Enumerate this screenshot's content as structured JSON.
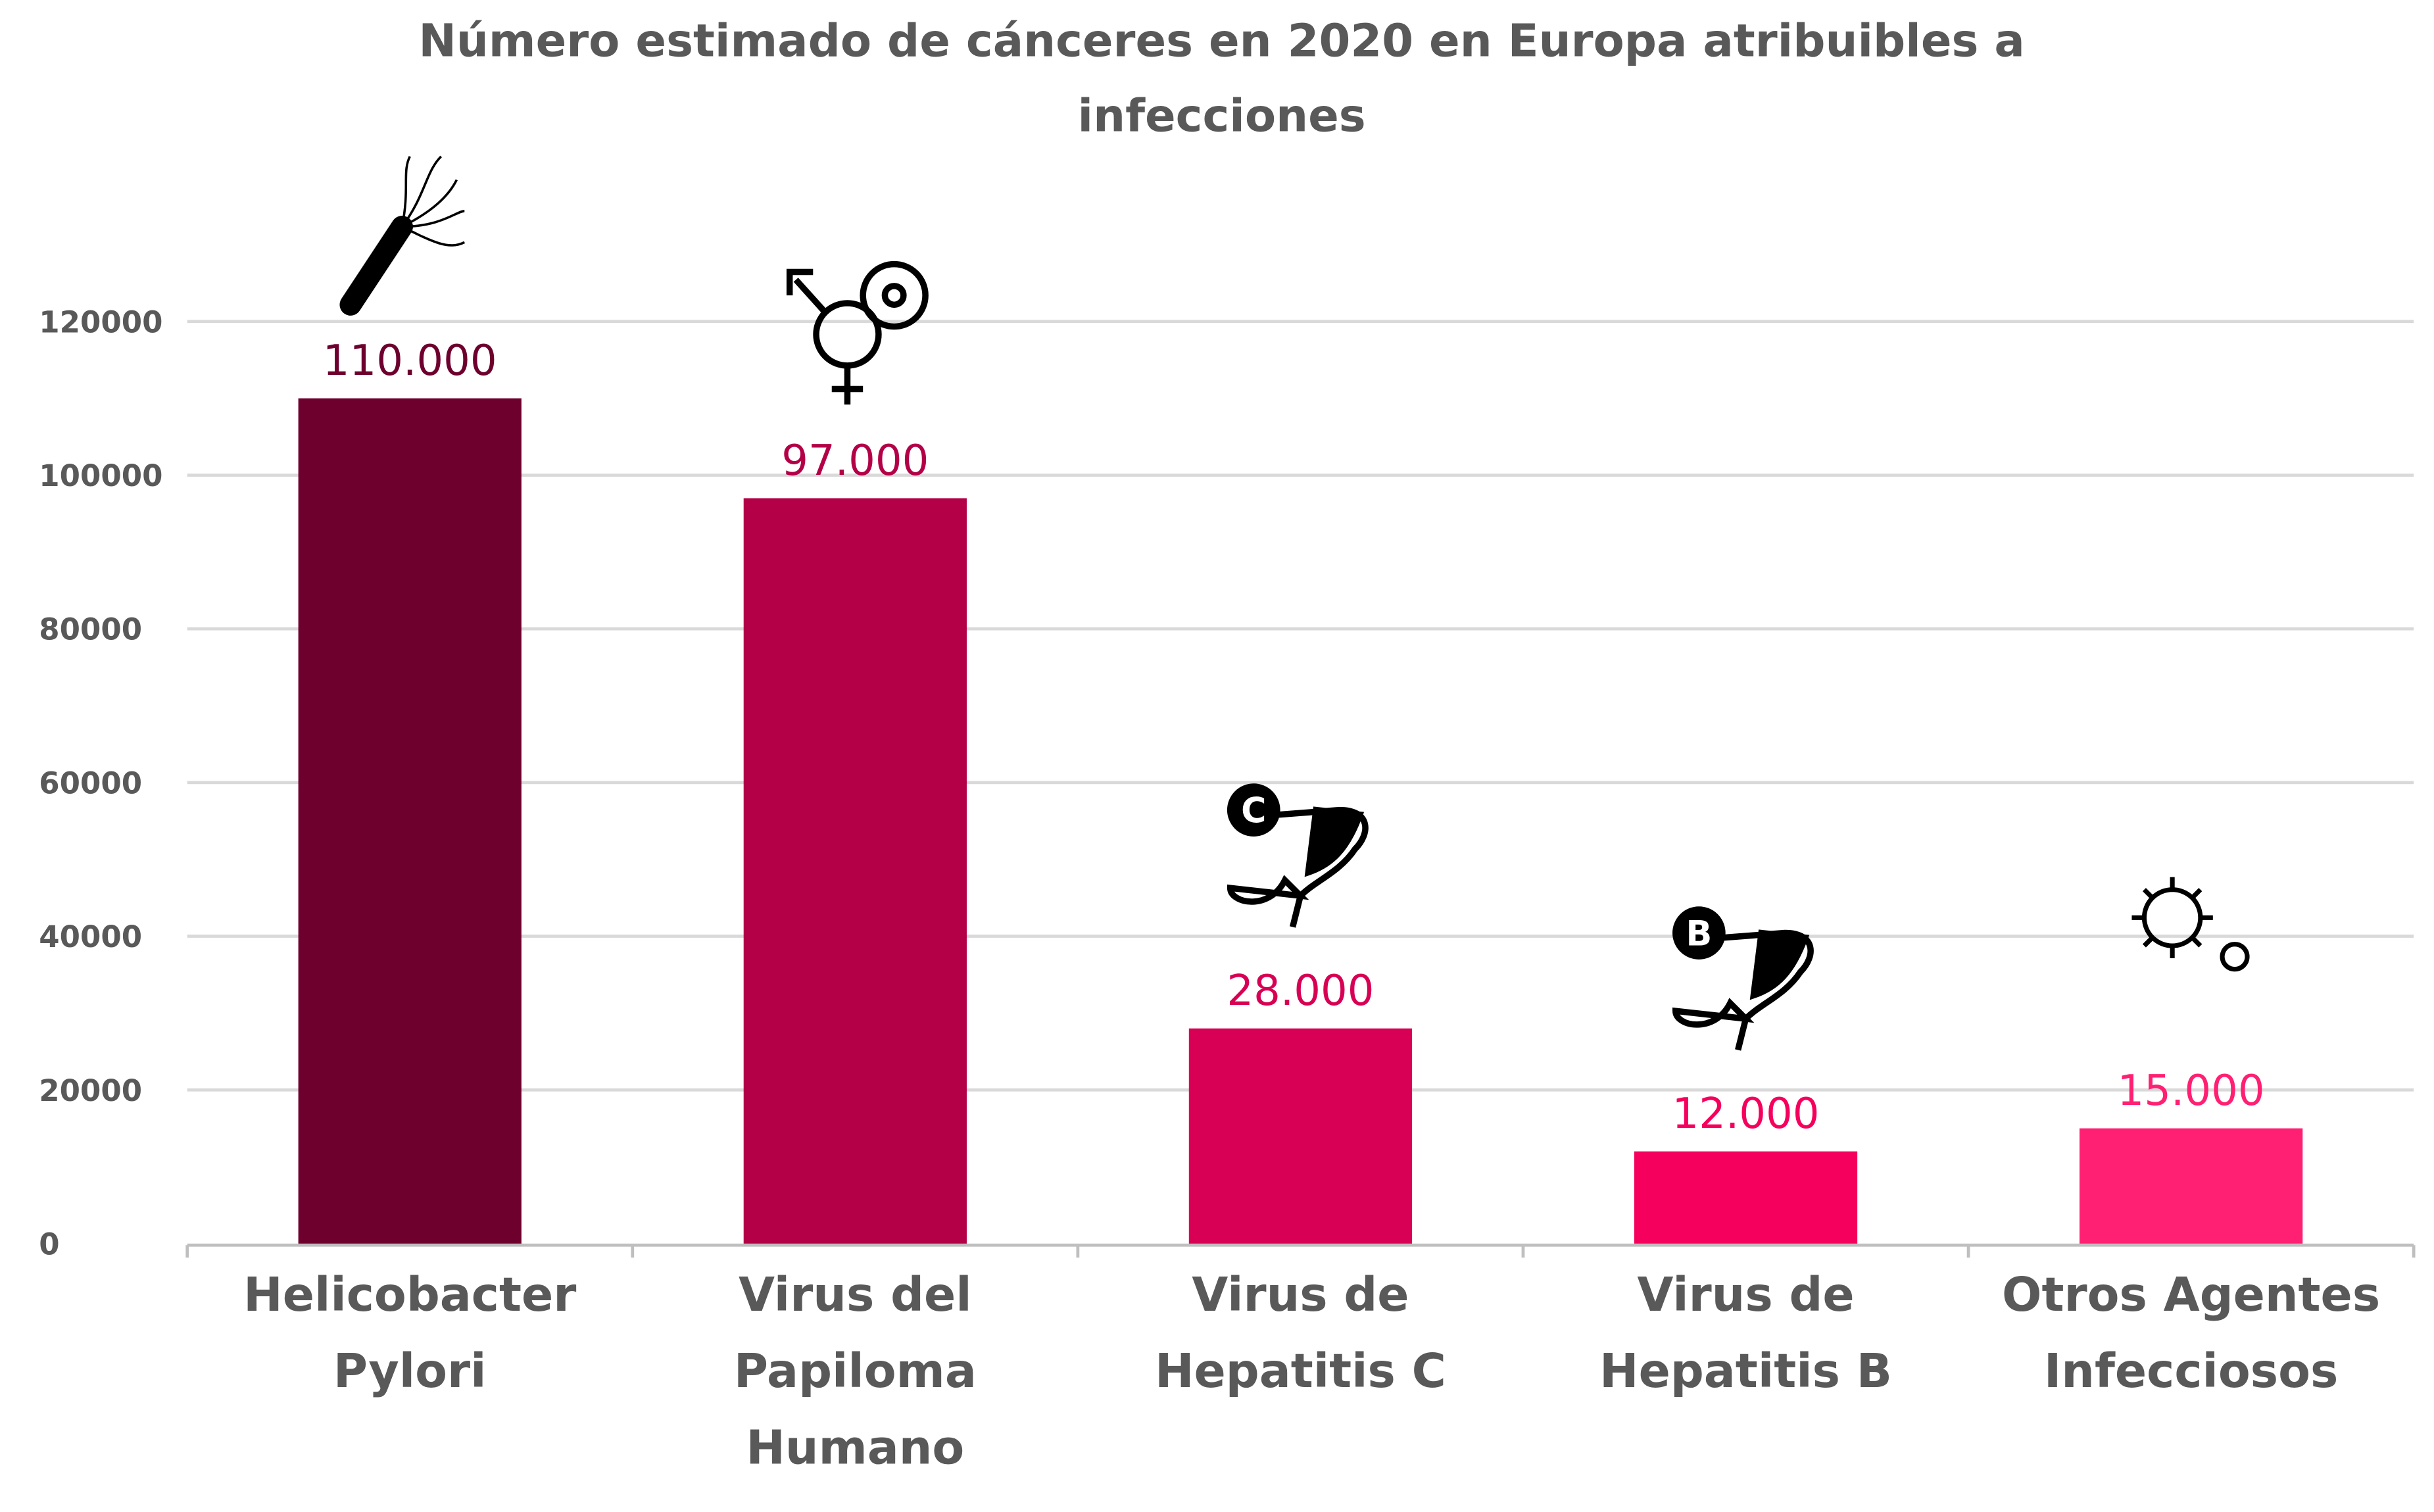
{
  "chart_data": {
    "type": "bar",
    "title": [
      "Número estimado de cánceres en 2020 en Europa atribuibles a",
      "infecciones"
    ],
    "xlabel": "",
    "ylabel": "",
    "ylim": [
      0,
      120000
    ],
    "yticks": [
      0,
      20000,
      40000,
      60000,
      80000,
      100000,
      120000
    ],
    "ytick_labels": [
      "0",
      "20000",
      "40000",
      "60000",
      "80000",
      "100000",
      "120000"
    ],
    "grid": true,
    "categories": [
      [
        "Helicobacter",
        "Pylori"
      ],
      [
        "Virus del",
        "Papiloma",
        "Humano"
      ],
      [
        "Virus de",
        "Hepatitis C"
      ],
      [
        "Virus de",
        "Hepatitis B"
      ],
      [
        "Otros Agentes",
        "Infecciosos"
      ]
    ],
    "values": [
      110000,
      97000,
      28000,
      12000,
      15000
    ],
    "data_labels": [
      "110.000",
      "97.000",
      "28.000",
      "12.000",
      "15.000"
    ],
    "colors": [
      "#6e002e",
      "#b30047",
      "#d80054",
      "#f5005d",
      "#ff1f73"
    ],
    "icons": [
      "bacteria-icon",
      "gender-symbols-icon",
      "liver-c-icon",
      "liver-b-icon",
      "virus-icon"
    ]
  }
}
